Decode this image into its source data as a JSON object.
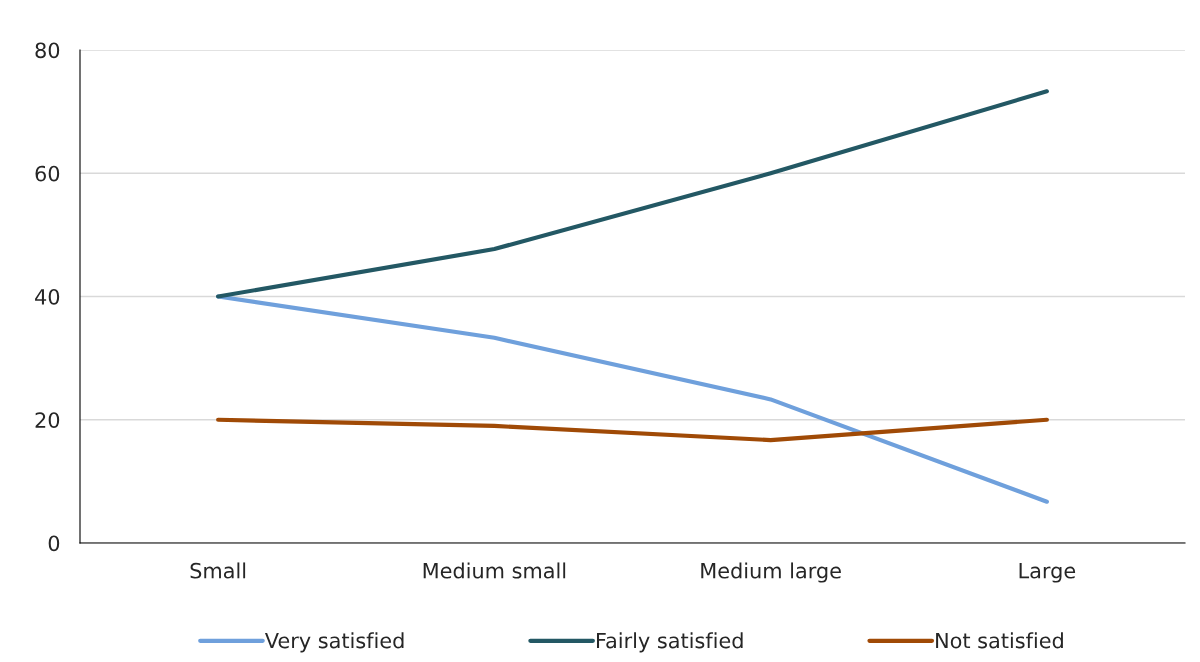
{
  "chart_data": {
    "type": "line",
    "categories": [
      "Small",
      "Medium small",
      "Medium large",
      "Large"
    ],
    "series": [
      {
        "name": "Very satisfied",
        "color": "#6fa0dc",
        "values": [
          40,
          33.3,
          23.3,
          6.7
        ]
      },
      {
        "name": "Fairly satisfied",
        "color": "#235864",
        "values": [
          40,
          47.7,
          60,
          73.3
        ]
      },
      {
        "name": "Not satisfied",
        "color": "#a04a06",
        "values": [
          20,
          19,
          16.7,
          20
        ]
      }
    ],
    "ylim": [
      0,
      80
    ],
    "yticks": [
      0,
      20,
      40,
      60,
      80
    ],
    "grid": "y",
    "legend": "bottom",
    "marker": "none",
    "line_style": "solid"
  }
}
